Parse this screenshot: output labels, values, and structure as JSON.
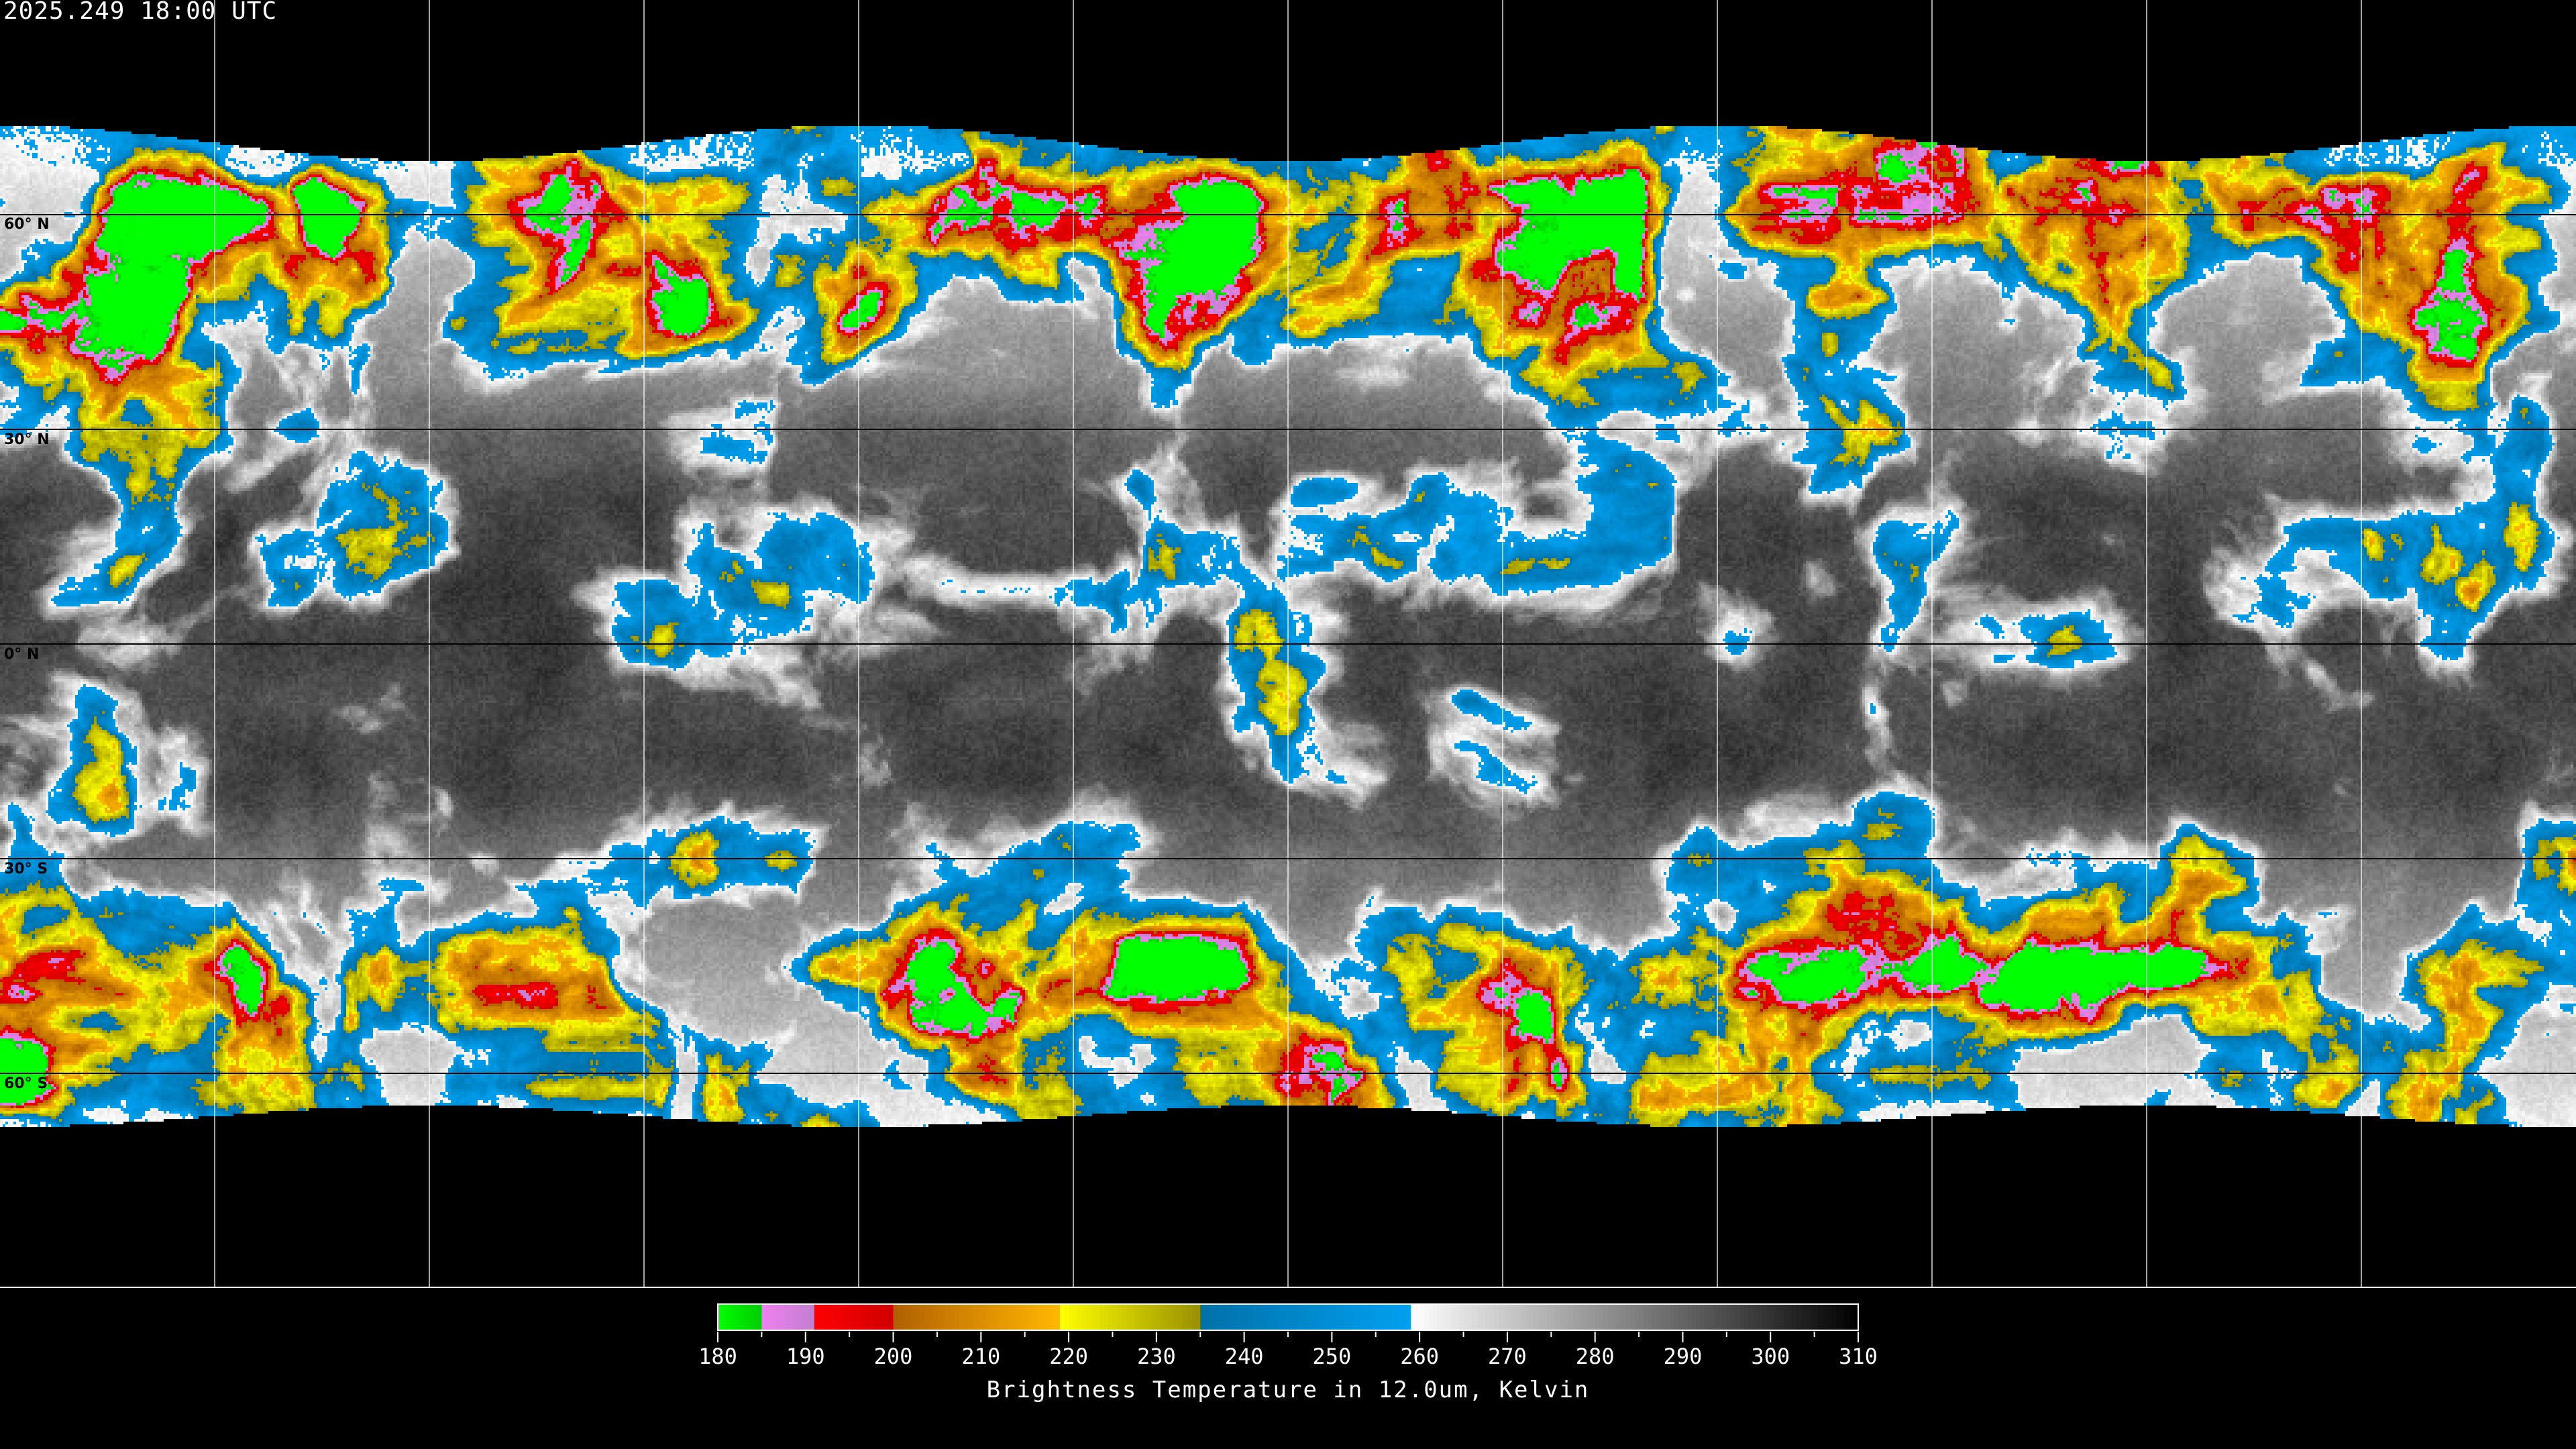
{
  "header": {
    "timestamp": "2025.249 18:00 UTC"
  },
  "map": {
    "projection": "equirectangular",
    "graticule_spacing_deg": 30,
    "lat_labels": [
      "60° N",
      "30° N",
      "0° N",
      "30° S",
      "60° S"
    ],
    "lat_values": [
      60,
      30,
      0,
      -30,
      -60
    ]
  },
  "colorbar": {
    "title": "Brightness Temperature in 12.0um, Kelvin",
    "min": 180,
    "max": 310,
    "tick_labels": [
      "180",
      "190",
      "200",
      "210",
      "220",
      "230",
      "240",
      "250",
      "260",
      "270",
      "280",
      "290",
      "300",
      "310"
    ],
    "segments": [
      {
        "from": 180,
        "to": 185,
        "start": "#00ff00",
        "end": "#00cc00"
      },
      {
        "from": 185,
        "to": 191,
        "start": "#f080f0",
        "end": "#c080d0"
      },
      {
        "from": 191,
        "to": 200,
        "start": "#ff0000",
        "end": "#d00000"
      },
      {
        "from": 200,
        "to": 219,
        "start": "#b06000",
        "end": "#ffb800"
      },
      {
        "from": 219,
        "to": 235,
        "start": "#ffff00",
        "end": "#989000"
      },
      {
        "from": 235,
        "to": 259,
        "start": "#0070a8",
        "end": "#00a0f0"
      },
      {
        "from": 259,
        "to": 310,
        "start": "#ffffff",
        "end": "#000000"
      }
    ]
  }
}
